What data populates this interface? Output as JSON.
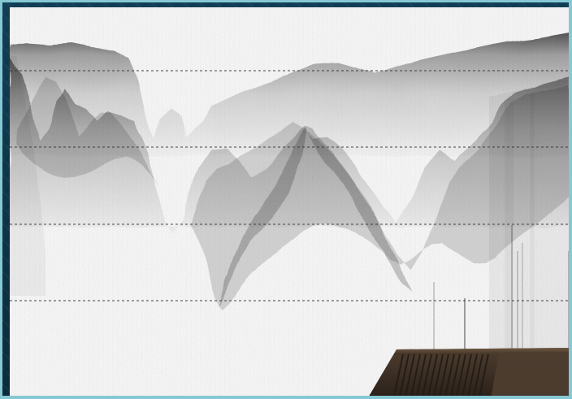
{
  "scene": {
    "type": "seismic-sonar-profile",
    "background_color": "#12394b",
    "paper_color": "#fafafa",
    "frame_color": "#86c8d3",
    "trace_color": "#111111",
    "dashed_line_color": "#333333",
    "dashed_line_count": 4,
    "device_visible": true,
    "device_color": "#4b3a2a",
    "device_grille_color": "#2c241c"
  }
}
